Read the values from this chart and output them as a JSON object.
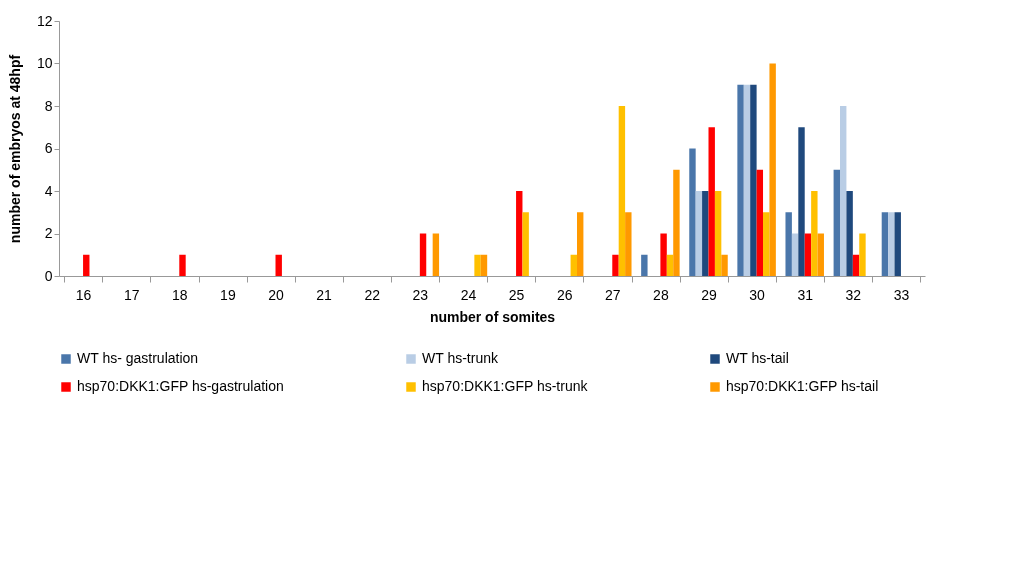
{
  "chart_data": {
    "type": "bar",
    "xlabel": "number of somites",
    "ylabel": "number of embryos at 48hpf",
    "categories": [
      "16",
      "17",
      "18",
      "19",
      "20",
      "21",
      "22",
      "23",
      "24",
      "25",
      "26",
      "27",
      "28",
      "29",
      "30",
      "31",
      "32",
      "33"
    ],
    "series": [
      {
        "name": "WT hs- gastrulation",
        "color": "#4a76aa",
        "values": [
          0,
          0,
          0,
          0,
          0,
          0,
          0,
          0,
          0,
          0,
          0,
          0,
          1,
          6,
          9,
          3,
          5,
          3
        ]
      },
      {
        "name": "WT  hs-trunk",
        "color": "#b9cde5",
        "values": [
          0,
          0,
          0,
          0,
          0,
          0,
          0,
          0,
          0,
          0,
          0,
          0,
          0,
          4,
          9,
          2,
          8,
          3
        ]
      },
      {
        "name": "WT hs-tail",
        "color": "#1f497d",
        "values": [
          0,
          0,
          0,
          0,
          0,
          0,
          0,
          0,
          0,
          0,
          0,
          0,
          0,
          4,
          9,
          7,
          4,
          3
        ]
      },
      {
        "name": "hsp70:DKK1:GFP hs-gastrulation",
        "color": "#ff0000",
        "values": [
          1,
          0,
          1,
          0,
          1,
          0,
          0,
          2,
          0,
          4,
          0,
          1,
          2,
          7,
          5,
          2,
          1,
          0
        ]
      },
      {
        "name": "hsp70:DKK1:GFP hs-trunk",
        "color": "#ffc000",
        "values": [
          0,
          0,
          0,
          0,
          0,
          0,
          0,
          0,
          1,
          3,
          1,
          8,
          1,
          4,
          3,
          4,
          2,
          0
        ]
      },
      {
        "name": "hsp70:DKK1:GFP hs-tail",
        "color": "#ff9900",
        "values": [
          0,
          0,
          0,
          0,
          0,
          0,
          0,
          2,
          1,
          0,
          3,
          3,
          5,
          1,
          10,
          2,
          0,
          0
        ]
      }
    ],
    "ylim": [
      0,
      12
    ],
    "yticks": [
      0,
      2,
      4,
      6,
      8,
      10,
      12
    ],
    "grid": false,
    "legend": "bottom"
  }
}
